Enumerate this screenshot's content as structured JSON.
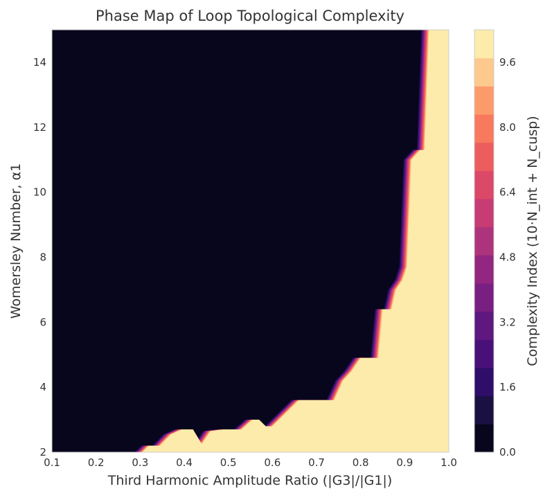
{
  "chart_data": {
    "type": "heatmap",
    "title": "Phase Map of Loop Topological Complexity",
    "xlabel": "Third Harmonic Amplitude Ratio (|G3|/|G1|)",
    "ylabel": "Womersley Number, α1",
    "colorbar_label": "Complexity Index (10·N_int + N_cusp)",
    "xlim": [
      0.1,
      1.0
    ],
    "ylim": [
      2,
      15
    ],
    "xticks": [
      "0.1",
      "0.2",
      "0.3",
      "0.4",
      "0.5",
      "0.6",
      "0.7",
      "0.8",
      "0.9",
      "1.0"
    ],
    "yticks": [
      "2",
      "4",
      "6",
      "8",
      "10",
      "12",
      "14"
    ],
    "colorbar_ticks": [
      "0.0",
      "1.6",
      "3.2",
      "4.8",
      "6.4",
      "8.0",
      "9.6"
    ],
    "colorbar_range": [
      0,
      10.4
    ],
    "low_value": 0,
    "high_value": 10,
    "colormap": "magma",
    "boundary": {
      "description_points_x": [
        0.305,
        0.32,
        0.345,
        0.37,
        0.395,
        0.42,
        0.44,
        0.46,
        0.49,
        0.53,
        0.555,
        0.57,
        0.585,
        0.6,
        0.63,
        0.66,
        0.7,
        0.74,
        0.76,
        0.78,
        0.8,
        0.84,
        0.85,
        0.87,
        0.88,
        0.895,
        0.905,
        0.915,
        0.935,
        0.945,
        0.955
      ],
      "description_points_y": [
        2.0,
        2.2,
        2.2,
        2.55,
        2.7,
        2.7,
        2.25,
        2.65,
        2.7,
        2.7,
        3.0,
        3.0,
        2.8,
        2.8,
        3.2,
        3.6,
        3.6,
        3.6,
        4.2,
        4.5,
        4.9,
        4.9,
        6.4,
        6.4,
        7.0,
        7.3,
        7.7,
        11.0,
        11.3,
        11.3,
        15.0
      ]
    },
    "legend": "none",
    "grid": false
  }
}
